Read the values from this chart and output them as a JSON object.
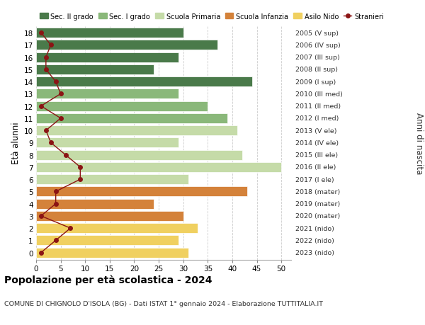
{
  "ages": [
    18,
    17,
    16,
    15,
    14,
    13,
    12,
    11,
    10,
    9,
    8,
    7,
    6,
    5,
    4,
    3,
    2,
    1,
    0
  ],
  "bar_values": [
    30,
    37,
    29,
    24,
    44,
    29,
    35,
    39,
    41,
    29,
    42,
    50,
    31,
    43,
    24,
    30,
    33,
    29,
    31
  ],
  "bar_colors": [
    "#4a7a4a",
    "#4a7a4a",
    "#4a7a4a",
    "#4a7a4a",
    "#4a7a4a",
    "#8ab87a",
    "#8ab87a",
    "#8ab87a",
    "#c5dba8",
    "#c5dba8",
    "#c5dba8",
    "#c5dba8",
    "#c5dba8",
    "#d4823a",
    "#d4823a",
    "#d4823a",
    "#f0d060",
    "#f0d060",
    "#f0d060"
  ],
  "stranieri_values": [
    1,
    3,
    2,
    2,
    4,
    5,
    1,
    5,
    2,
    3,
    6,
    9,
    9,
    4,
    4,
    1,
    7,
    4,
    1
  ],
  "right_labels": [
    "2005 (V sup)",
    "2006 (IV sup)",
    "2007 (III sup)",
    "2008 (II sup)",
    "2009 (I sup)",
    "2010 (III med)",
    "2011 (II med)",
    "2012 (I med)",
    "2013 (V ele)",
    "2014 (IV ele)",
    "2015 (III ele)",
    "2016 (II ele)",
    "2017 (I ele)",
    "2018 (mater)",
    "2019 (mater)",
    "2020 (mater)",
    "2021 (nido)",
    "2022 (nido)",
    "2023 (nido)"
  ],
  "legend_labels": [
    "Sec. II grado",
    "Sec. I grado",
    "Scuola Primaria",
    "Scuola Infanzia",
    "Asilo Nido",
    "Stranieri"
  ],
  "legend_colors": [
    "#4a7a4a",
    "#8ab87a",
    "#c5dba8",
    "#d4823a",
    "#f0d060",
    "#8b1414"
  ],
  "xlabel_left": "Età alunni",
  "xlabel_right": "Anni di nascita",
  "title": "Popolazione per età scolastica - 2024",
  "subtitle": "COMUNE DI CHIGNOLO D'ISOLA (BG) - Dati ISTAT 1° gennaio 2024 - Elaborazione TUTTITALIA.IT",
  "xlim": [
    0,
    52
  ],
  "xticks": [
    0,
    5,
    10,
    15,
    20,
    25,
    30,
    35,
    40,
    45,
    50
  ],
  "grid_color": "#cccccc",
  "background_color": "#ffffff",
  "stranieri_color": "#8b1414",
  "stranieri_line_color": "#8b1414"
}
